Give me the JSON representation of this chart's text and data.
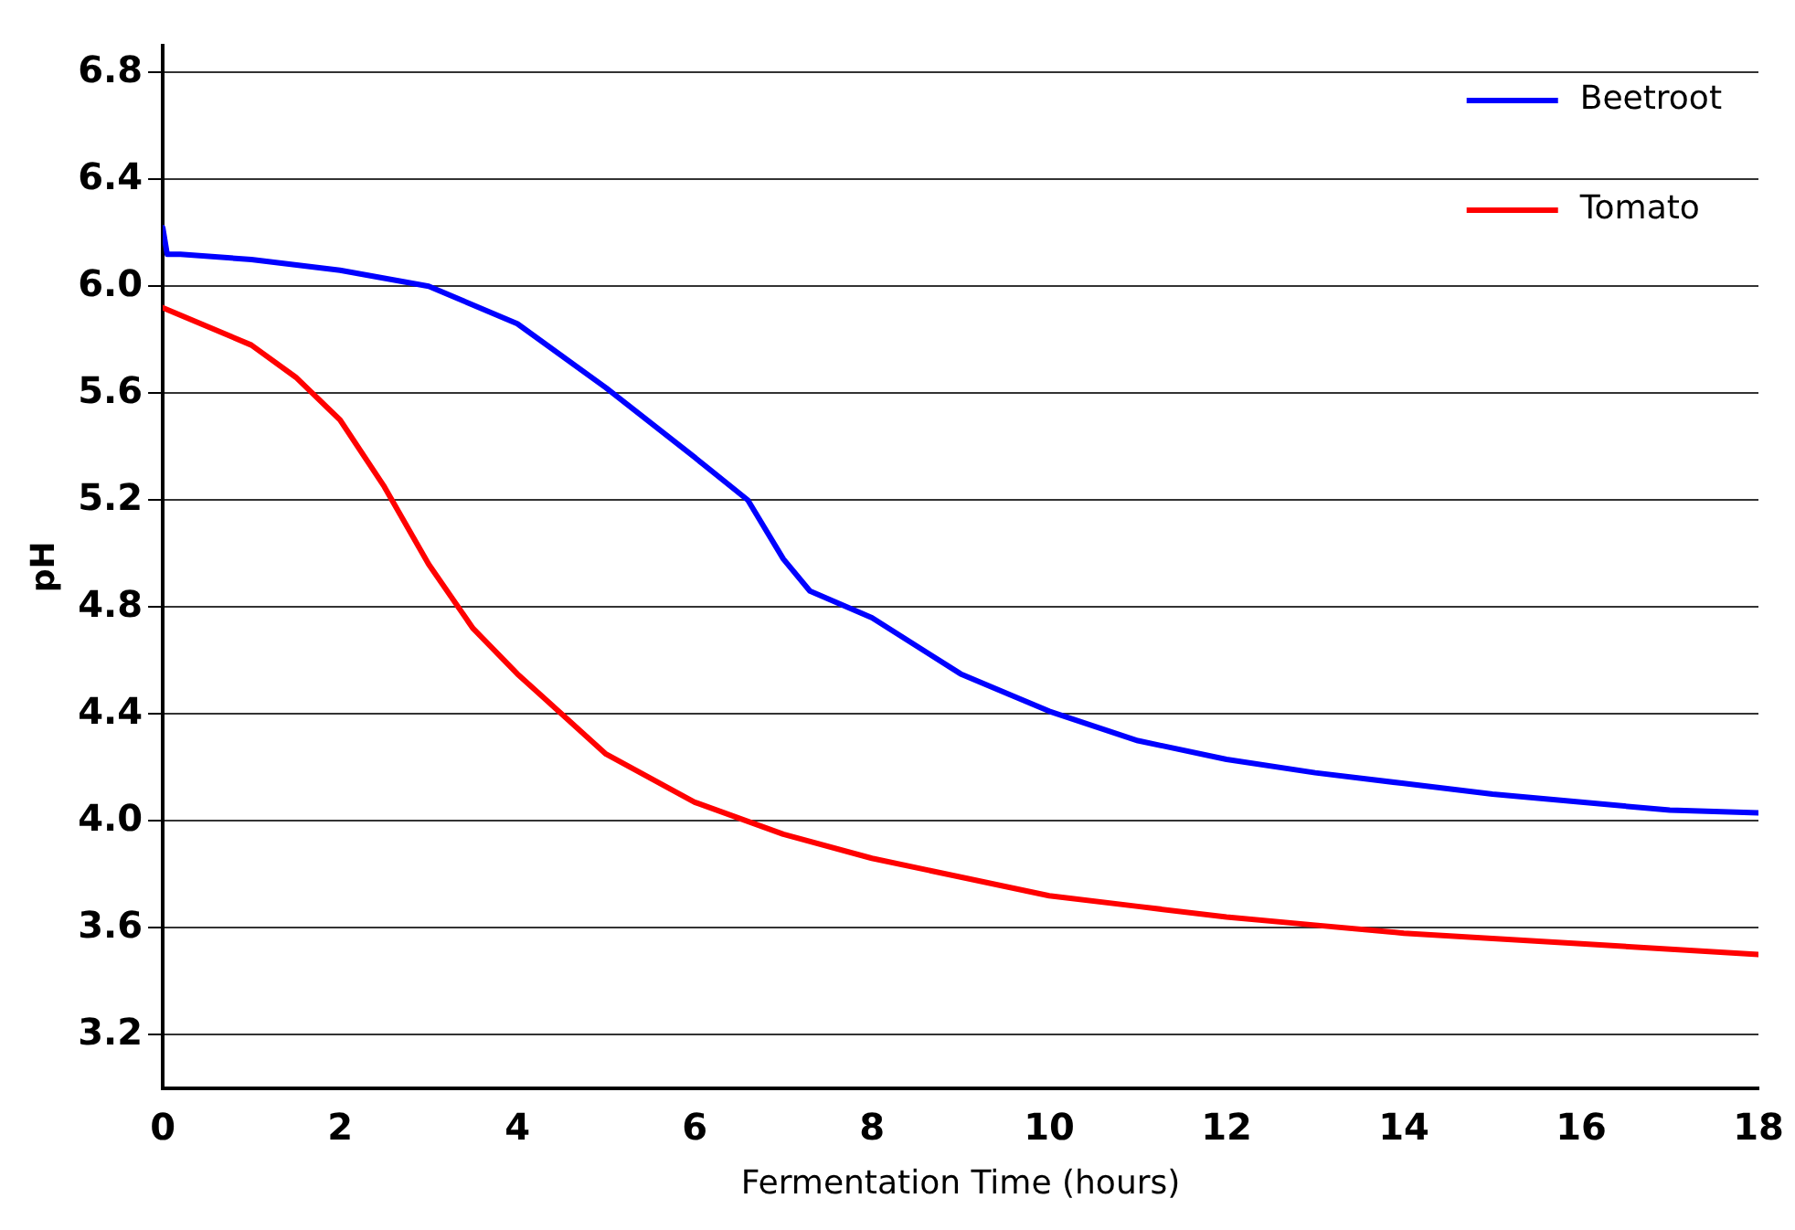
{
  "chart_data": {
    "type": "line",
    "xlabel": "Fermentation Time (hours)",
    "ylabel": "pH",
    "xlim": [
      0,
      18
    ],
    "xticks": [
      0,
      2,
      4,
      6,
      8,
      10,
      12,
      14,
      16,
      18
    ],
    "ylim": [
      3.0,
      6.9
    ],
    "yticks": [
      {
        "value": 3.2,
        "label": "3.2"
      },
      {
        "value": 3.6,
        "label": "3.6"
      },
      {
        "value": 4.0,
        "label": "4.0"
      },
      {
        "value": 4.4,
        "label": "4.4"
      },
      {
        "value": 4.8,
        "label": "4.8"
      },
      {
        "value": 5.2,
        "label": "5.2"
      },
      {
        "value": 5.6,
        "label": "5.6"
      },
      {
        "value": 6.0,
        "label": "6.0"
      },
      {
        "value": 6.4,
        "label": "6.4"
      },
      {
        "value": 6.8,
        "label": "6.8"
      }
    ],
    "grid": "y",
    "legend": "top right",
    "marker": "none",
    "line_style": "solid",
    "series": [
      {
        "name": "Beetroot",
        "color": "#0000ff",
        "x": [
          0,
          0.05,
          0.2,
          1,
          2,
          3,
          4,
          5,
          6,
          6.6,
          7,
          7.3,
          8,
          9,
          10,
          11,
          12,
          13,
          14,
          15,
          16,
          17,
          18
        ],
        "values": [
          6.22,
          6.12,
          6.12,
          6.1,
          6.06,
          6.0,
          5.86,
          5.62,
          5.36,
          5.2,
          4.98,
          4.86,
          4.76,
          4.55,
          4.41,
          4.3,
          4.23,
          4.18,
          4.14,
          4.1,
          4.07,
          4.04,
          4.03
        ]
      },
      {
        "name": "Tomato",
        "color": "#ff0000",
        "x": [
          0,
          1,
          1.5,
          2,
          2.5,
          3,
          3.5,
          4,
          5,
          6,
          7,
          8,
          9,
          10,
          11,
          12,
          13,
          14,
          16,
          18
        ],
        "values": [
          5.92,
          5.78,
          5.66,
          5.5,
          5.25,
          4.96,
          4.72,
          4.55,
          4.25,
          4.07,
          3.95,
          3.86,
          3.79,
          3.72,
          3.68,
          3.64,
          3.61,
          3.58,
          3.54,
          3.5
        ]
      }
    ]
  }
}
